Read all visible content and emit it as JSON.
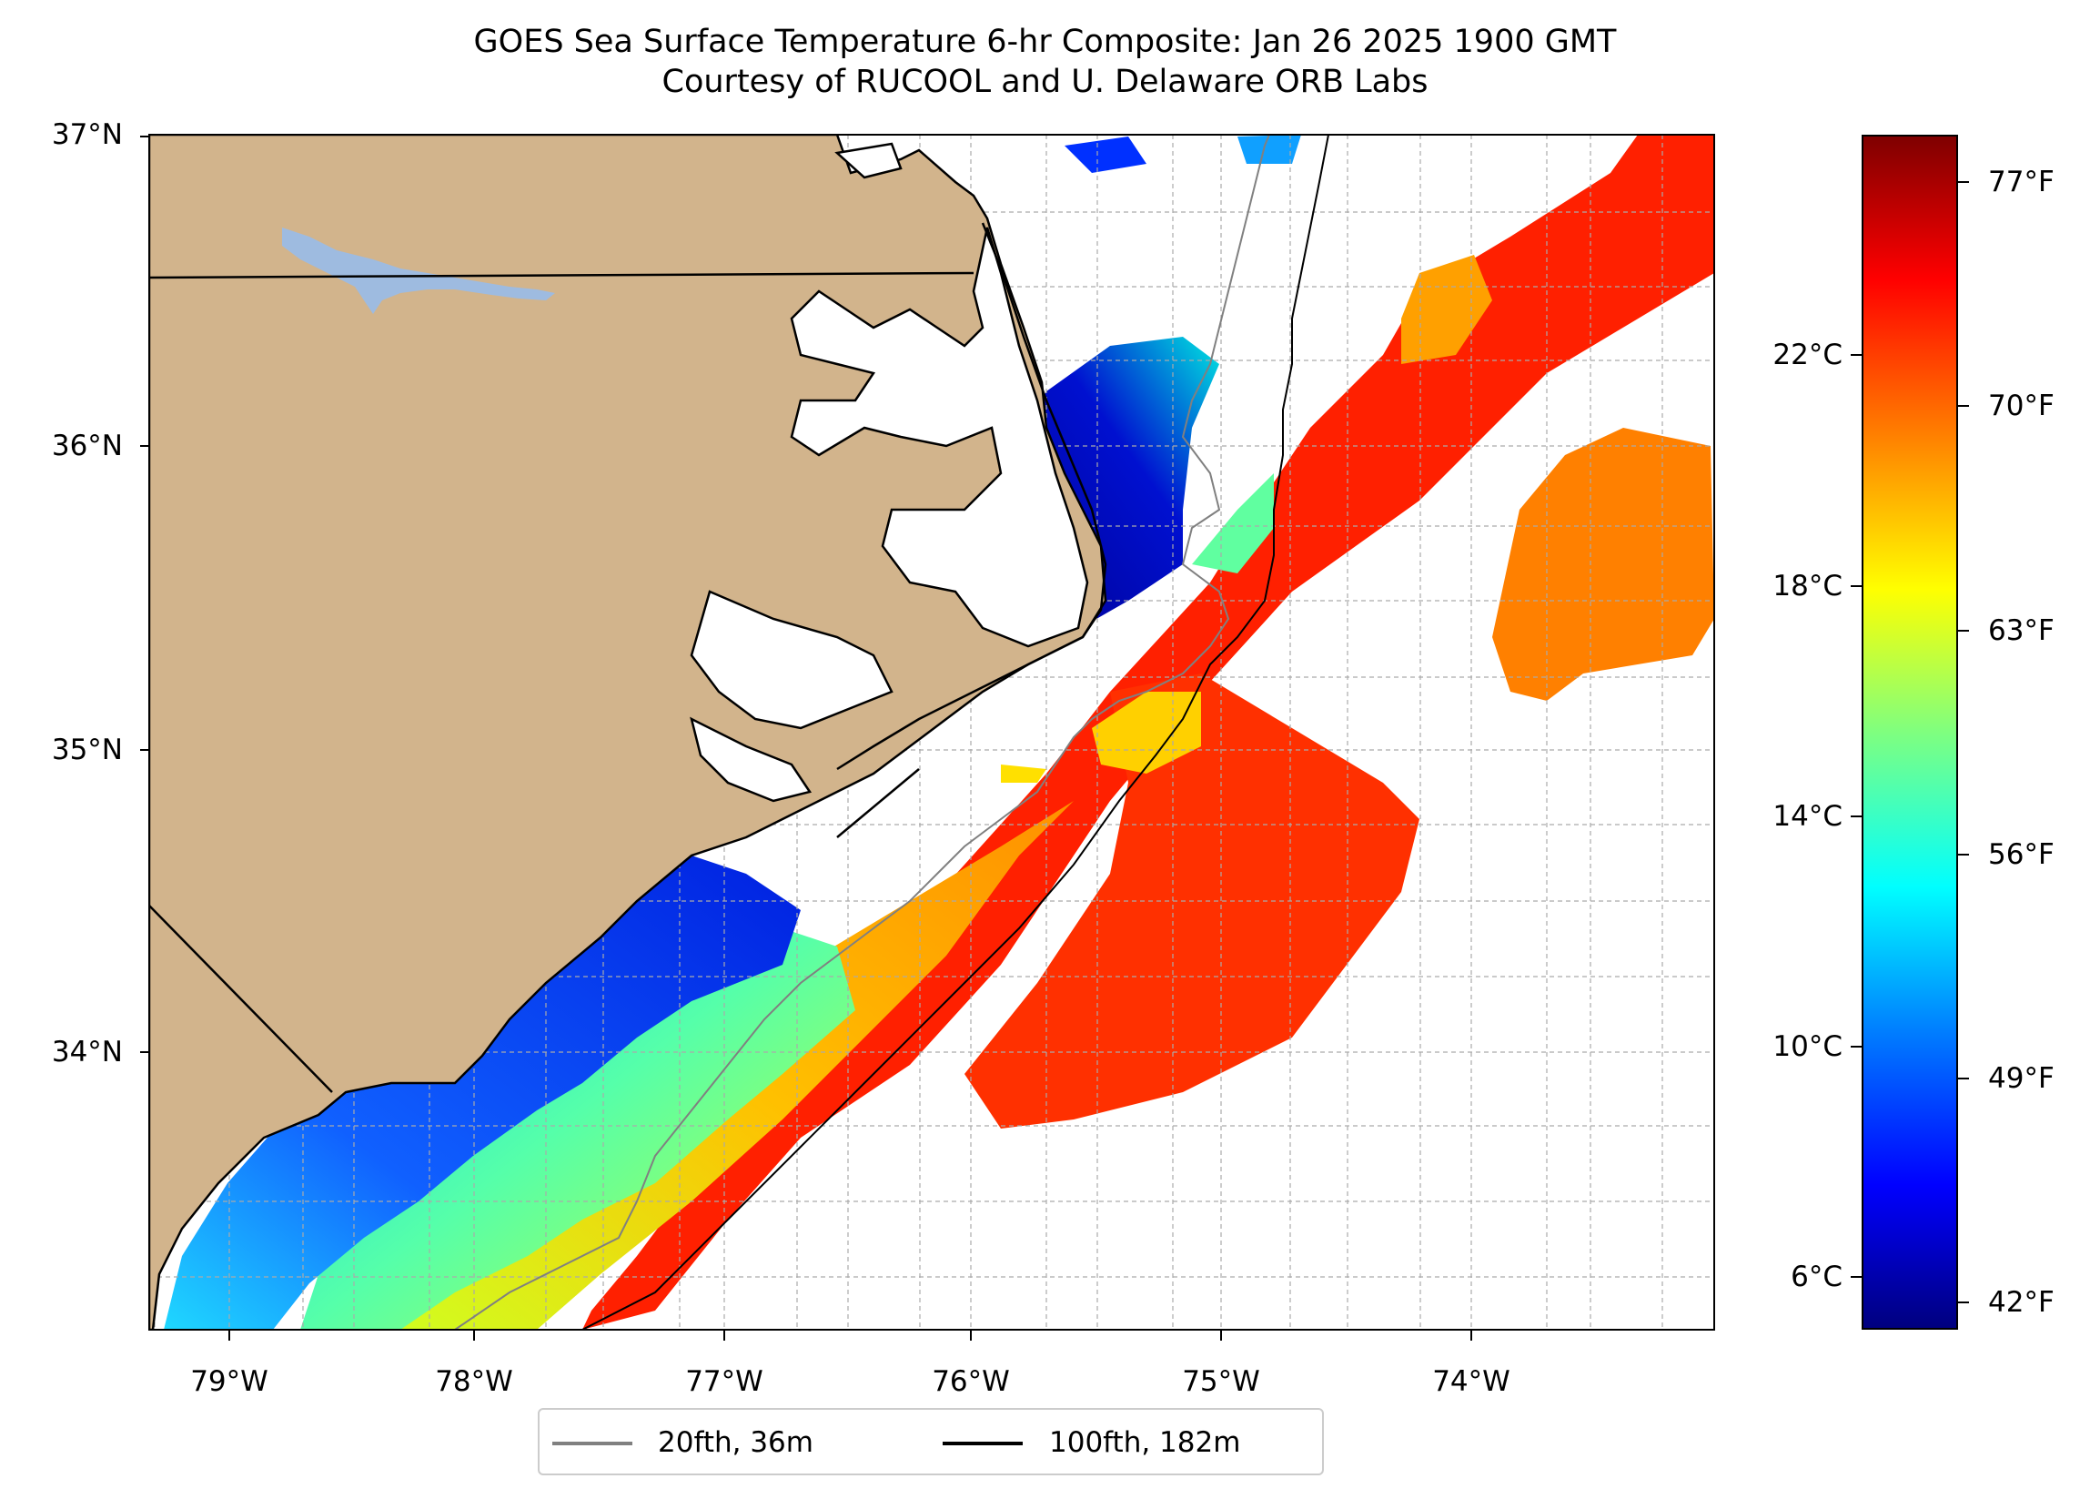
{
  "title": {
    "line1": "GOES Sea Surface Temperature 6-hr Composite: Jan 26 2025 1900 GMT",
    "line2": "Courtesy of RUCOOL and U. Delaware ORB Labs"
  },
  "map": {
    "extent": {
      "lon": [
        -79.3,
        -73.05
      ],
      "lat": [
        33.1,
        37.0
      ]
    },
    "lat_labels": [
      "37°N",
      "36°N",
      "35°N",
      "34°N"
    ],
    "lon_labels": [
      "79°W",
      "78°W",
      "77°W",
      "76°W",
      "75°W",
      "74°W"
    ],
    "land_color": "#d2b48c",
    "lake_color": "#9ebbe0",
    "grid": "on"
  },
  "colorbar": {
    "celsius_labels": [
      "22°C",
      "18°C",
      "14°C",
      "10°C",
      "6°C"
    ],
    "fahrenheit_labels": [
      "77°F",
      "70°F",
      "63°F",
      "56°F",
      "49°F",
      "42°F"
    ],
    "colormap": "jet"
  },
  "legend": {
    "items": [
      {
        "label": "20fth, 36m",
        "color": "#808080"
      },
      {
        "label": "100fth, 182m",
        "color": "#000000"
      }
    ]
  },
  "chart_data": {
    "type": "heatmap",
    "title": "GOES Sea Surface Temperature 6-hr Composite: Jan 26 2025 1900 GMT",
    "subtitle": "Courtesy of RUCOOL and U. Delaware ORB Labs",
    "xlim": [
      -79.3,
      -73.05
    ],
    "ylim": [
      33.1,
      37.0
    ],
    "value_range_celsius": [
      5.2,
      26.0
    ],
    "series": [
      {
        "name": "20fth, 36m"
      },
      {
        "name": "100fth, 182m"
      }
    ]
  }
}
